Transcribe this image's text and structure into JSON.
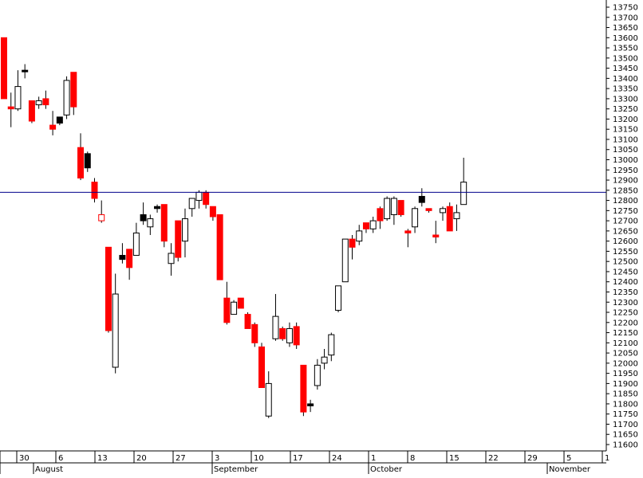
{
  "chart_data": {
    "type": "candlestick",
    "title": "",
    "xlabel": "",
    "ylabel": "",
    "ylim": [
      11550,
      13800
    ],
    "y_ticks": [
      11600,
      11650,
      11700,
      11750,
      11800,
      11850,
      11900,
      11950,
      12000,
      12050,
      12100,
      12150,
      12200,
      12250,
      12300,
      12350,
      12400,
      12450,
      12500,
      12550,
      12600,
      12650,
      12700,
      12750,
      12800,
      12850,
      12900,
      12950,
      13000,
      13050,
      13100,
      13150,
      13200,
      13250,
      13300,
      13350,
      13400,
      13450,
      13500,
      13550,
      13600,
      13650,
      13700,
      13750
    ],
    "x_tick_labels": [
      "30",
      "6",
      "13",
      "20",
      "27",
      "3",
      "10",
      "17",
      "24",
      "1",
      "8",
      "15",
      "22",
      "29",
      "5",
      "1"
    ],
    "month_labels": [
      "August",
      "September",
      "October",
      "November"
    ],
    "reference_line": 12840,
    "grid": false,
    "colors": {
      "up_fill": "#ffffff",
      "down_fill": "#ff0000",
      "doji": "#000000",
      "outline": "#000000",
      "reference_line": "#00008b"
    },
    "candles": [
      {
        "open": 13600,
        "high": 13600,
        "low": 13300,
        "close": 13300,
        "color": "red"
      },
      {
        "open": 13260,
        "high": 13330,
        "low": 13160,
        "close": 13250,
        "color": "red"
      },
      {
        "open": 13250,
        "high": 13440,
        "low": 13240,
        "close": 13360,
        "color": "white"
      },
      {
        "open": 13440,
        "high": 13470,
        "low": 13400,
        "close": 13440,
        "color": "black"
      },
      {
        "open": 13290,
        "high": 13290,
        "low": 13180,
        "close": 13190,
        "color": "red"
      },
      {
        "open": 13270,
        "high": 13310,
        "low": 13250,
        "close": 13290,
        "color": "white"
      },
      {
        "open": 13300,
        "high": 13340,
        "low": 13250,
        "close": 13270,
        "color": "red"
      },
      {
        "open": 13170,
        "high": 13240,
        "low": 13120,
        "close": 13150,
        "color": "red"
      },
      {
        "open": 13210,
        "high": 13200,
        "low": 13170,
        "close": 13180,
        "color": "black"
      },
      {
        "open": 13220,
        "high": 13410,
        "low": 13200,
        "close": 13390,
        "color": "white"
      },
      {
        "open": 13430,
        "high": 13430,
        "low": 13220,
        "close": 13260,
        "color": "red"
      },
      {
        "open": 13060,
        "high": 13130,
        "low": 12900,
        "close": 12910,
        "color": "red"
      },
      {
        "open": 13030,
        "high": 13040,
        "low": 12940,
        "close": 12960,
        "color": "black"
      },
      {
        "open": 12890,
        "high": 12910,
        "low": 12790,
        "close": 12810,
        "color": "red"
      },
      {
        "open": 12700,
        "high": 12800,
        "low": 12690,
        "close": 12730,
        "color": "white-red"
      },
      {
        "open": 12570,
        "high": 12570,
        "low": 12150,
        "close": 12160,
        "color": "red"
      },
      {
        "open": 11980,
        "high": 12440,
        "low": 11950,
        "close": 12340,
        "color": "white"
      },
      {
        "open": 12530,
        "high": 12590,
        "low": 12490,
        "close": 12510,
        "color": "black"
      },
      {
        "open": 12560,
        "high": 12560,
        "low": 12410,
        "close": 12470,
        "color": "red"
      },
      {
        "open": 12530,
        "high": 12690,
        "low": 12530,
        "close": 12640,
        "color": "white"
      },
      {
        "open": 12730,
        "high": 12790,
        "low": 12680,
        "close": 12700,
        "color": "black"
      },
      {
        "open": 12670,
        "high": 12730,
        "low": 12630,
        "close": 12710,
        "color": "white"
      },
      {
        "open": 12770,
        "high": 12780,
        "low": 12740,
        "close": 12760,
        "color": "black"
      },
      {
        "open": 12780,
        "high": 12780,
        "low": 12570,
        "close": 12600,
        "color": "red"
      },
      {
        "open": 12540,
        "high": 12590,
        "low": 12430,
        "close": 12490,
        "color": "white"
      },
      {
        "open": 12700,
        "high": 12700,
        "low": 12500,
        "close": 12520,
        "color": "red"
      },
      {
        "open": 12600,
        "high": 12760,
        "low": 12520,
        "close": 12710,
        "color": "white"
      },
      {
        "open": 12760,
        "high": 12810,
        "low": 12720,
        "close": 12810,
        "color": "white"
      },
      {
        "open": 12800,
        "high": 12850,
        "low": 12760,
        "close": 12840,
        "color": "white"
      },
      {
        "open": 12840,
        "high": 12850,
        "low": 12760,
        "close": 12780,
        "color": "red"
      },
      {
        "open": 12770,
        "high": 12770,
        "low": 12700,
        "close": 12720,
        "color": "red"
      },
      {
        "open": 12730,
        "high": 12730,
        "low": 12410,
        "close": 12410,
        "color": "red"
      },
      {
        "open": 12320,
        "high": 12400,
        "low": 12190,
        "close": 12200,
        "color": "red"
      },
      {
        "open": 12240,
        "high": 12310,
        "low": 12250,
        "close": 12300,
        "color": "white"
      },
      {
        "open": 12320,
        "high": 12320,
        "low": 12270,
        "close": 12270,
        "color": "red"
      },
      {
        "open": 12240,
        "high": 12250,
        "low": 12170,
        "close": 12170,
        "color": "red"
      },
      {
        "open": 12190,
        "high": 12200,
        "low": 12080,
        "close": 12100,
        "color": "red"
      },
      {
        "open": 12080,
        "high": 12100,
        "low": 11880,
        "close": 11880,
        "color": "red"
      },
      {
        "open": 11740,
        "high": 11960,
        "low": 11730,
        "close": 11900,
        "color": "white"
      },
      {
        "open": 12120,
        "high": 12340,
        "low": 12110,
        "close": 12230,
        "color": "white"
      },
      {
        "open": 12170,
        "high": 12180,
        "low": 12110,
        "close": 12120,
        "color": "red"
      },
      {
        "open": 12100,
        "high": 12200,
        "low": 12080,
        "close": 12170,
        "color": "white"
      },
      {
        "open": 12180,
        "high": 12200,
        "low": 12070,
        "close": 12090,
        "color": "red"
      },
      {
        "open": 11990,
        "high": 11990,
        "low": 11740,
        "close": 11760,
        "color": "red"
      },
      {
        "open": 11800,
        "high": 11820,
        "low": 11760,
        "close": 11790,
        "color": "black"
      },
      {
        "open": 11890,
        "high": 12020,
        "low": 11870,
        "close": 11990,
        "color": "white"
      },
      {
        "open": 12000,
        "high": 12070,
        "low": 11970,
        "close": 12030,
        "color": "white"
      },
      {
        "open": 12040,
        "high": 12150,
        "low": 12010,
        "close": 12140,
        "color": "white"
      },
      {
        "open": 12260,
        "high": 12380,
        "low": 12250,
        "close": 12380,
        "color": "white"
      },
      {
        "open": 12400,
        "high": 12610,
        "low": 12400,
        "close": 12610,
        "color": "white"
      },
      {
        "open": 12610,
        "high": 12630,
        "low": 12510,
        "close": 12570,
        "color": "red"
      },
      {
        "open": 12600,
        "high": 12680,
        "low": 12580,
        "close": 12650,
        "color": "white"
      },
      {
        "open": 12690,
        "high": 12690,
        "low": 12640,
        "close": 12660,
        "color": "red"
      },
      {
        "open": 12660,
        "high": 12720,
        "low": 12640,
        "close": 12700,
        "color": "white"
      },
      {
        "open": 12760,
        "high": 12770,
        "low": 12660,
        "close": 12700,
        "color": "red"
      },
      {
        "open": 12710,
        "high": 12820,
        "low": 12700,
        "close": 12810,
        "color": "white"
      },
      {
        "open": 12730,
        "high": 12820,
        "low": 12680,
        "close": 12810,
        "color": "white"
      },
      {
        "open": 12800,
        "high": 12800,
        "low": 12720,
        "close": 12730,
        "color": "red"
      },
      {
        "open": 12650,
        "high": 12660,
        "low": 12570,
        "close": 12640,
        "color": "red"
      },
      {
        "open": 12670,
        "high": 12770,
        "low": 12640,
        "close": 12760,
        "color": "white"
      },
      {
        "open": 12820,
        "high": 12860,
        "low": 12770,
        "close": 12790,
        "color": "black"
      },
      {
        "open": 12760,
        "high": 12760,
        "low": 12740,
        "close": 12750,
        "color": "red"
      },
      {
        "open": 12620,
        "high": 12700,
        "low": 12590,
        "close": 12630,
        "color": "red"
      },
      {
        "open": 12740,
        "high": 12770,
        "low": 12700,
        "close": 12760,
        "color": "white"
      },
      {
        "open": 12770,
        "high": 12790,
        "low": 12650,
        "close": 12650,
        "color": "red"
      },
      {
        "open": 12710,
        "high": 12780,
        "low": 12650,
        "close": 12740,
        "color": "white"
      },
      {
        "open": 12780,
        "high": 13010,
        "low": 12780,
        "close": 12890,
        "color": "white"
      }
    ]
  }
}
